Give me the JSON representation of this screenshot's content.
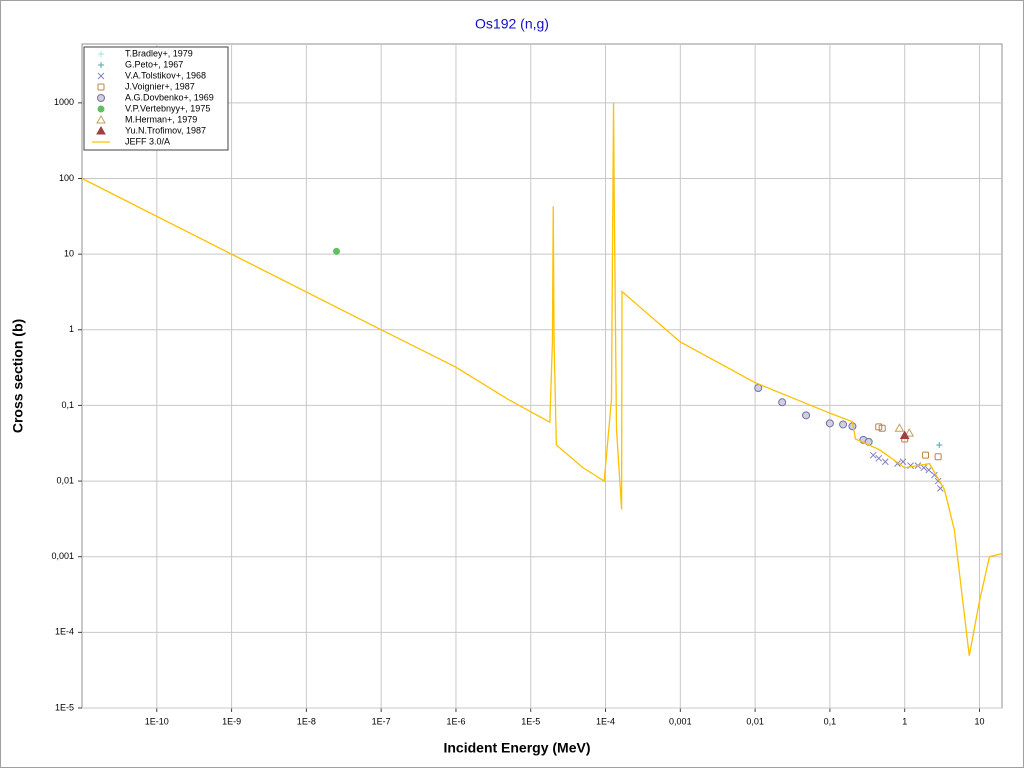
{
  "chart_data": {
    "type": "line",
    "title": "Os192 (n,g)",
    "x_label": "Incident Energy (MeV)",
    "y_label": "Cross section (b)",
    "x_log": true,
    "y_log": true,
    "grid": true,
    "legend": "upper left",
    "xlim": [
      1e-11,
      20
    ],
    "ylim": [
      1e-05,
      6000
    ],
    "xticks": [
      {
        "value": 1e-10,
        "label": "1E-10"
      },
      {
        "value": 1e-09,
        "label": "1E-9"
      },
      {
        "value": 1e-08,
        "label": "1E-8"
      },
      {
        "value": 1e-07,
        "label": "1E-7"
      },
      {
        "value": 1e-06,
        "label": "1E-6"
      },
      {
        "value": 1e-05,
        "label": "1E-5"
      },
      {
        "value": 0.0001,
        "label": "1E-4"
      },
      {
        "value": 0.001,
        "label": "0,001"
      },
      {
        "value": 0.01,
        "label": "0,01"
      },
      {
        "value": 0.1,
        "label": "0,1"
      },
      1,
      10
    ],
    "yticks": [
      {
        "value": 1e-05,
        "label": "1E-5"
      },
      {
        "value": 0.0001,
        "label": "1E-4"
      },
      {
        "value": 0.001,
        "label": "0,001"
      },
      {
        "value": 0.01,
        "label": "0,01"
      },
      {
        "value": 0.1,
        "label": "0,1"
      },
      1,
      10,
      100,
      1000
    ],
    "series": [
      {
        "name": "T.Bradley+, 1979",
        "color": "#a8dcec",
        "marker": "plus",
        "x": [],
        "values": []
      },
      {
        "name": "G.Peto+, 1967",
        "color": "#40b0a0",
        "marker": "plus",
        "x": [
          2.9
        ],
        "values": [
          0.03
        ]
      },
      {
        "name": "V.A.Tolstikov+, 1968",
        "color": "#8080c8",
        "marker": "cross",
        "x": [
          0.38,
          0.45,
          0.55,
          0.8,
          0.95,
          1.2,
          1.5,
          1.8,
          2.1,
          2.5,
          2.8,
          3
        ],
        "values": [
          0.022,
          0.02,
          0.018,
          0.017,
          0.018,
          0.016,
          0.016,
          0.015,
          0.014,
          0.012,
          0.01,
          0.008
        ]
      },
      {
        "name": "J.Voignier+, 1987",
        "color": "#c08040",
        "marker": "square",
        "x": [
          0.45,
          0.5,
          1.0,
          1.9,
          2.8
        ],
        "values": [
          0.052,
          0.05,
          0.036,
          0.022,
          0.021
        ]
      },
      {
        "name": "A.G.Dovbenko+, 1969",
        "color": "#7070a8",
        "marker": "circle",
        "x": [
          0.011,
          0.023,
          0.048,
          0.1,
          0.15,
          0.2,
          0.28,
          0.33
        ],
        "values": [
          0.17,
          0.11,
          0.074,
          0.058,
          0.056,
          0.053,
          0.035,
          0.033
        ]
      },
      {
        "name": "V.P.Vertebnyy+, 1975",
        "color": "#60c060",
        "marker": "dot",
        "x": [
          2.53e-08
        ],
        "values": [
          10.9
        ]
      },
      {
        "name": "M.Herman+, 1979",
        "color": "#c0a060",
        "marker": "triangle",
        "x": [
          0.85,
          1.15
        ],
        "values": [
          0.05,
          0.043
        ]
      },
      {
        "name": "Yu.N.Trofimov, 1987",
        "color": "#a04040",
        "marker": "filled-triangle",
        "x": [
          1.0
        ],
        "values": [
          0.04
        ]
      },
      {
        "name": "JEFF 3.0/A",
        "color": "#ffc000",
        "marker": "line",
        "x": [
          1e-11,
          1e-09,
          1e-07,
          1e-06,
          5e-06,
          1.8e-05,
          1.95e-05,
          2e-05,
          2.05e-05,
          2.2e-05,
          5e-05,
          9.6e-05,
          0.00012,
          0.000126,
          0.000128,
          0.00013,
          0.00014,
          0.000164,
          0.000166,
          0.001,
          0.01,
          0.1,
          0.2,
          0.22,
          0.46,
          1,
          2.15,
          3.4,
          4.6,
          7.3,
          10,
          13.6,
          20
        ],
        "values": [
          100,
          10,
          1,
          0.32,
          0.12,
          0.06,
          0.7,
          43,
          0.7,
          0.03,
          0.015,
          0.01,
          0.12,
          100,
          1000,
          100,
          0.05,
          0.0042,
          3.2,
          0.69,
          0.2,
          0.079,
          0.061,
          0.036,
          0.026,
          0.015,
          0.017,
          0.0077,
          0.0023,
          4.9e-05,
          0.00026,
          0.001,
          0.0011
        ]
      }
    ]
  }
}
